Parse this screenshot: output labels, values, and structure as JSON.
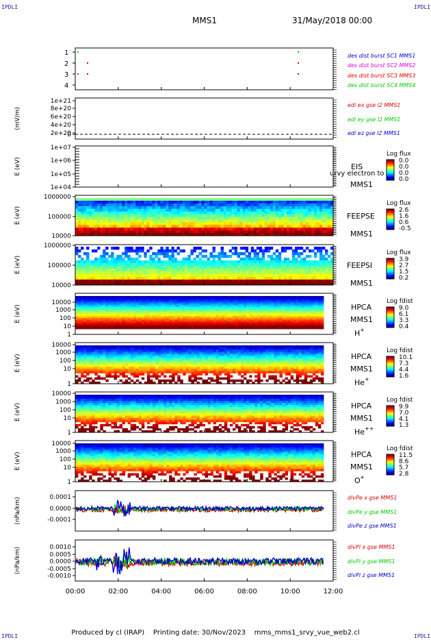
{
  "corner_label": "IPDLI",
  "title": "MMS1",
  "datetime": "31/May/2018 00:00",
  "footer": "Produced by cl (IRAP)    Printing date: 30/Nov/2023    mms_mms1_srvy_vue_web2.cl",
  "time_ticks": [
    "00:00",
    "02:00",
    "04:00",
    "06:00",
    "08:00",
    "10:00",
    "12:00"
  ],
  "colors": {
    "red": "#dd0000",
    "green": "#00cc00",
    "blue": "#0000cc",
    "magenta": "#dd00dd"
  },
  "chart_data": [
    {
      "type": "scatter",
      "name": "burst-flags",
      "yticks": [
        "1",
        "2",
        "3",
        "4"
      ],
      "ylim": [
        0.5,
        4.5
      ],
      "legend": [
        {
          "text": "des dist burst SC1 MMS1",
          "color": "blue"
        },
        {
          "text": "des dist burst SC2 MMS2",
          "color": "magenta"
        },
        {
          "text": "des dist burst SC3 MMS3",
          "color": "red"
        },
        {
          "text": "des dist burst SC4 MMS4",
          "color": "green"
        }
      ]
    },
    {
      "type": "line",
      "name": "edi",
      "ylabel": "(mV/m)",
      "yticks": [
        "1e+21",
        "8e+20",
        "6e+20",
        "4e+20",
        "2e+20",
        "0"
      ],
      "legend": [
        {
          "text": "edi ex gse l2 MMS1",
          "color": "red"
        },
        {
          "text": "edi ey gse l2 MMS1",
          "color": "green"
        },
        {
          "text": "edi ez gse l2 MMS1",
          "color": "blue"
        }
      ]
    },
    {
      "type": "heatmap",
      "name": "eis",
      "ylabel": "E (eV)",
      "yticks": [
        "1e+07",
        "1e+06",
        "1e+05",
        "1e+04"
      ],
      "label1": "EIS",
      "label2": "MMS1",
      "overlay": "urvy electron to",
      "cb_title": "Log flux",
      "cb_ticks": [
        "0.0",
        "0.0",
        "0.0",
        "0.0"
      ]
    },
    {
      "type": "heatmap",
      "name": "feepse",
      "ylabel": "E (eV)",
      "yticks": [
        "1000000",
        "100000",
        "10000"
      ],
      "label1": "FEEPSE",
      "label2": "MMS1",
      "cb_title": "Log flux",
      "cb_ticks": [
        "2.6",
        "1.6",
        "0.6",
        "-0.5"
      ]
    },
    {
      "type": "heatmap",
      "name": "feepsi",
      "ylabel": "E (eV)",
      "yticks": [
        "1000000",
        "100000",
        "10000"
      ],
      "label1": "FEEPSI",
      "label2": "MMS1",
      "cb_title": "Log flux",
      "cb_ticks": [
        "3.9",
        "2.7",
        "1.5",
        "0.2"
      ]
    },
    {
      "type": "heatmap",
      "name": "hpca-h",
      "ylabel": "E (eV)",
      "yticks": [
        "10000",
        "1000",
        "100",
        "10",
        "1"
      ],
      "label1": "HPCA",
      "label2": "MMS1",
      "label3": "H",
      "sup": "+",
      "cb_title": "Log fdist",
      "cb_ticks": [
        "9.0",
        "6.1",
        "3.3",
        "0.4"
      ]
    },
    {
      "type": "heatmap",
      "name": "hpca-he",
      "ylabel": "E (eV)",
      "yticks": [
        "10000",
        "1000",
        "100",
        "10",
        "1"
      ],
      "label1": "HPCA",
      "label2": "MMS1",
      "label3": "He",
      "sup": "+",
      "cb_title": "Log fdist",
      "cb_ticks": [
        "10.1",
        "7.3",
        "4.4",
        "1.6"
      ]
    },
    {
      "type": "heatmap",
      "name": "hpca-hepp",
      "ylabel": "E (eV)",
      "yticks": [
        "10000",
        "1000",
        "100",
        "10",
        "1"
      ],
      "label1": "HPCA",
      "label2": "MMS1",
      "label3": "He",
      "sup": "++",
      "cb_title": "Log fdist",
      "cb_ticks": [
        "9.9",
        "7.0",
        "4.1",
        "1.3"
      ]
    },
    {
      "type": "heatmap",
      "name": "hpca-o",
      "ylabel": "E (eV)",
      "yticks": [
        "10000",
        "1000",
        "100",
        "10",
        "1"
      ],
      "label1": "HPCA",
      "label2": "MMS1",
      "label3": "O",
      "sup": "+",
      "cb_title": "Log fdist",
      "cb_ticks": [
        "11.5",
        "8.6",
        "5.7",
        "2.8"
      ]
    },
    {
      "type": "line",
      "name": "divpe",
      "ylabel": "(nPa/km)",
      "yticks": [
        "0.0001",
        "0.0000",
        "-0.0001"
      ],
      "legend": [
        {
          "text": "divPe x gse MMS1",
          "color": "red"
        },
        {
          "text": "divPe y gse MMS1",
          "color": "green"
        },
        {
          "text": "divPe z gse MMS1",
          "color": "blue"
        }
      ]
    },
    {
      "type": "line",
      "name": "divpi",
      "ylabel": "(nPa/km)",
      "yticks": [
        "0.0010",
        "0.0005",
        "0.0000",
        "-0.0005",
        "-0.0010"
      ],
      "legend": [
        {
          "text": "divPi x gse MMS1",
          "color": "red"
        },
        {
          "text": "divPi y gse MMS1",
          "color": "green"
        },
        {
          "text": "divPi z gse MMS1",
          "color": "blue"
        }
      ]
    }
  ]
}
